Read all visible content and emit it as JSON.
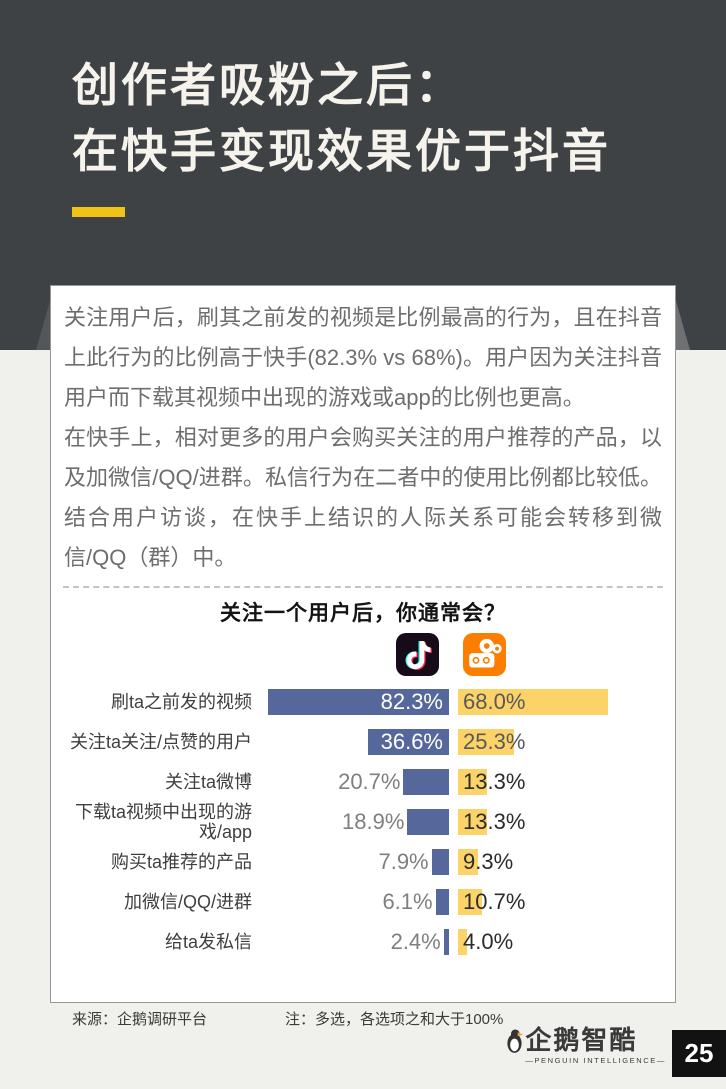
{
  "header": {
    "title_line1": "创作者吸粉之后：",
    "title_line2": "在快手变现效果优于抖音"
  },
  "body": {
    "paragraph1": "关注用户后，刷其之前发的视频是比例最高的行为，且在抖音上此行为的比例高于快手(82.3% vs 68%)。用户因为关注抖音用户而下载其视频中出现的游戏或app的比例也更高。",
    "paragraph2": "在快手上，相对更多的用户会购买关注的用户推荐的产品，以及加微信/QQ/进群。私信行为在二者中的使用比例都比较低。结合用户访谈，在快手上结识的人际关系可能会转移到微信/QQ（群）中。"
  },
  "chart_data": {
    "type": "bar",
    "orientation": "horizontal-diverging",
    "title": "关注一个用户后，你通常会？",
    "unit": "%",
    "value_labels": true,
    "categories": [
      "刷ta之前发的视频",
      "关注ta关注/点赞的用户",
      "关注ta微博",
      "下载ta视频中出现的游戏/app",
      "购买ta推荐的产品",
      "加微信/QQ/进群",
      "给ta发私信"
    ],
    "series": [
      {
        "name": "抖音",
        "icon": "douyin-app-icon",
        "color": "#56689B",
        "values": [
          82.3,
          36.6,
          20.7,
          18.9,
          7.9,
          6.1,
          2.4
        ]
      },
      {
        "name": "快手",
        "icon": "kuaishou-app-icon",
        "color": "#FBD368",
        "values": [
          68.0,
          25.3,
          13.3,
          13.3,
          9.3,
          10.7,
          4.0
        ]
      }
    ]
  },
  "footer": {
    "source": "来源：企鹅调研平台",
    "note": "注：多选，各选项之和大于100%",
    "logo_text": "企鹅智酷",
    "logo_subtext": "—PENGUIN INTELLIGENCE—",
    "page_number": "25"
  },
  "colors": {
    "header_bg": "#3F4245",
    "accent_yellow": "#F0C316",
    "page_bg": "#F0F0EC",
    "card_bg": "#FFFFFF",
    "douyin_bar": "#56689B",
    "kuaishou_bar": "#FBD368",
    "douyin_icon_bg": "#170B1A",
    "kuaishou_icon_bg": "#FB7E00"
  }
}
